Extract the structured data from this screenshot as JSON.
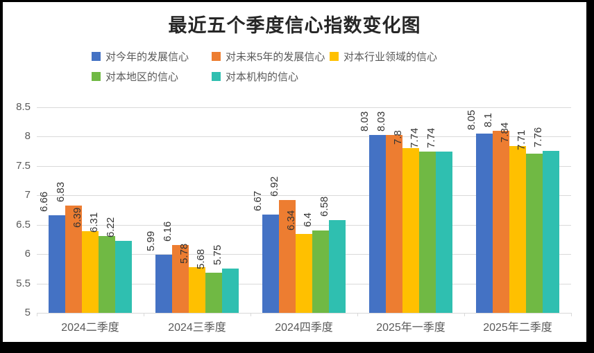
{
  "title": "最近五个季度信心指数变化图",
  "chart_data": {
    "type": "bar",
    "title": "最近五个季度信心指数变化图",
    "categories": [
      "2024二季度",
      "2024三季度",
      "2024四季度",
      "2025年一季度",
      "2025年二季度"
    ],
    "series": [
      {
        "name": "对今年的发展信心",
        "color": "#4472C4",
        "values": [
          6.66,
          5.99,
          6.67,
          8.03,
          8.05
        ]
      },
      {
        "name": "对未来5年的发展信心",
        "color": "#ED7D31",
        "values": [
          6.83,
          6.16,
          6.92,
          8.03,
          8.1
        ]
      },
      {
        "name": "对本行业领域的信心",
        "color": "#FFC000",
        "values": [
          6.39,
          5.78,
          6.34,
          7.8,
          7.84
        ]
      },
      {
        "name": "对本地区的信心",
        "color": "#70B944",
        "values": [
          6.31,
          5.68,
          6.4,
          7.74,
          7.71
        ]
      },
      {
        "name": "对本机构的信心",
        "color": "#2FBFB0",
        "values": [
          6.22,
          5.75,
          6.58,
          7.74,
          7.76
        ]
      }
    ],
    "yticks": [
      "5",
      "5.5",
      "6",
      "6.5",
      "7",
      "7.5",
      "8",
      "8.5"
    ],
    "ylim": [
      5,
      8.5
    ],
    "grid": true,
    "legend_position": "top",
    "bar_value_labels": true,
    "bar_label_rotation_deg": 90,
    "gridline_color": "#D9D9D9",
    "axis_text_color": "#595959",
    "label_text_color": "#333333"
  }
}
